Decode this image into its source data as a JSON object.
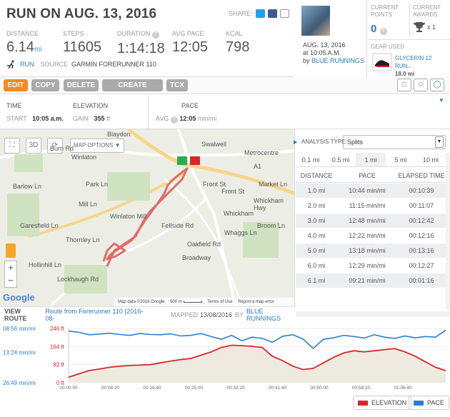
{
  "header": {
    "title": "RUN ON AUG. 13, 2016",
    "share_label": "SHARE:",
    "stats": [
      {
        "label": "DISTANCE",
        "value": "6.14",
        "unit": "mi"
      },
      {
        "label": "STEPS",
        "value": "11605",
        "unit": ""
      },
      {
        "label": "DURATION",
        "value": "1:14:18",
        "unit": ""
      },
      {
        "label": "AVG PACE",
        "value": "12:05",
        "unit": ""
      },
      {
        "label": "KCAL",
        "value": "798",
        "unit": ""
      }
    ],
    "activity_type": "RUN",
    "source_label": "SOURCE",
    "source_value": "GARMIN FORERUNNER 110"
  },
  "profile": {
    "date": "AUG. 13, 2016",
    "time": "at 10:05 A.M.",
    "by_label": "by",
    "user": "BLUE RUNNINGS"
  },
  "points": {
    "current_points_label": "CURRENT POINTS",
    "current_points_value": "0",
    "current_awards_label": "CURRENT AWARDS",
    "current_awards_value": "x 1"
  },
  "gear": {
    "label": "GEAR USED",
    "name": "GLYCERIN 12 RUN...",
    "distance": "18.0 mi"
  },
  "toolbar": {
    "edit": "EDIT",
    "copy": "COPY",
    "delete": "DELETE",
    "create_course": "CREATE COURSE",
    "tcx": "TCX"
  },
  "details": {
    "time_label": "TIME",
    "start_label": "START",
    "start_value": "10:05 a.m.",
    "elevation_label": "ELEVATION",
    "gain_label": "GAIN",
    "gain_value": "355",
    "gain_unit": "ft",
    "pace_label": "PACE",
    "avg_label": "AVG",
    "avg_value": "12:05",
    "avg_unit": "min/mi"
  },
  "map": {
    "options_label": "MAP OPTIONS",
    "places": [
      "Winlaton",
      "Swalwell",
      "Metrocentre",
      "Whickham",
      "Winlaton Mill",
      "Blaydon",
      "Market Ln",
      "Front St",
      "Oakfield Rd",
      "Broadway",
      "Whickham Hwy",
      "Lockhaugh Rd",
      "Park Ln",
      "Mill Ln",
      "Barlow Ln",
      "Burn Rd",
      "Garesfield Ln",
      "Thornley Ln",
      "Fellside Rd",
      "Hollinhill Ln",
      "A1",
      "Front St",
      "Broom Ln",
      "Whaggs Ln"
    ],
    "attribution": "Map data ©2016 Google",
    "scale": "500 m",
    "terms": "Terms of Use",
    "report": "Report a map error",
    "google": "Google"
  },
  "view_route": {
    "label": "VIEW ROUTE",
    "route_name": "Route from Forerunner 110 (2016-08-",
    "mapped_label": "MAPPED",
    "mapped_date": "13/08/2016",
    "by_label": "BY",
    "user": "BLUE RUNNINGS"
  },
  "analysis": {
    "type_label": "ANALYSIS TYPE:",
    "type_value": "Splits",
    "tabs": [
      "0.1 mi",
      "0.5 mi",
      "1 mi",
      "5 mi",
      "10 mi"
    ],
    "active_tab": "1 mi",
    "columns": [
      "DISTANCE",
      "PACE",
      "ELAPSED TIME"
    ],
    "rows": [
      [
        "1.0 mi",
        "10:44 min/mi",
        "00:10:39"
      ],
      [
        "2.0 mi",
        "11:15 min/mi",
        "00:11:07"
      ],
      [
        "3.0 mi",
        "12:48 min/mi",
        "00:12:42"
      ],
      [
        "4.0 mi",
        "12:22 min/mi",
        "00:12:16"
      ],
      [
        "5.0 mi",
        "13:18 min/mi",
        "00:13:16"
      ],
      [
        "6.0 mi",
        "12:29 min/mi",
        "00:12:27"
      ],
      [
        "6.1 mi",
        "09:21 min/mi",
        "00:01:16"
      ]
    ]
  },
  "chart_data": {
    "type": "line",
    "pace_ticks": [
      "08:56 min/mi",
      "13:24 min/mi",
      "26:49 min/mi"
    ],
    "elev_ticks": [
      "246 ft",
      "164 ft",
      "82 ft",
      "0 ft"
    ],
    "x_ticks": [
      "00:00:00",
      "00:08:20",
      "00:16:40",
      "00:25:00",
      "00:33:20",
      "00:41:40",
      "00:50:00",
      "00:58:20",
      "01:06:40"
    ],
    "x_minutes": [
      0,
      2,
      4,
      6,
      8,
      10,
      12,
      14,
      16,
      18,
      20,
      22,
      24,
      26,
      28,
      30,
      32,
      34,
      36,
      38,
      40,
      42,
      44,
      46,
      48,
      50,
      52,
      54,
      56,
      58,
      60,
      62,
      64,
      66,
      68,
      70,
      72,
      74
    ],
    "series": [
      {
        "name": "ELEVATION",
        "color": "#d9262b",
        "values": [
          25,
          40,
          55,
          62,
          70,
          75,
          78,
          80,
          82,
          90,
          98,
          105,
          110,
          125,
          140,
          160,
          170,
          168,
          165,
          160,
          120,
          100,
          75,
          60,
          65,
          90,
          115,
          135,
          145,
          140,
          145,
          150,
          155,
          140,
          120,
          95,
          70,
          55
        ]
      },
      {
        "name": "PACE",
        "color": "#2a7ed0",
        "values": [
          9.8,
          10.2,
          11.0,
          10.8,
          10.5,
          10.9,
          11.2,
          10.6,
          10.9,
          11.0,
          10.7,
          11.4,
          11.2,
          10.6,
          11.6,
          12.5,
          11.2,
          13.0,
          11.8,
          12.2,
          13.5,
          11.5,
          11.0,
          12.4,
          15.5,
          12.5,
          12.0,
          11.2,
          11.6,
          12.1,
          11.0,
          11.8,
          12.2,
          11.4,
          12.0,
          11.6,
          11.8,
          9.5
        ]
      }
    ],
    "elev_range": [
      0,
      246
    ],
    "pace_range_min": [
      8.93,
      26.82
    ]
  },
  "legend": {
    "elevation": "ELEVATION",
    "pace": "PACE"
  }
}
